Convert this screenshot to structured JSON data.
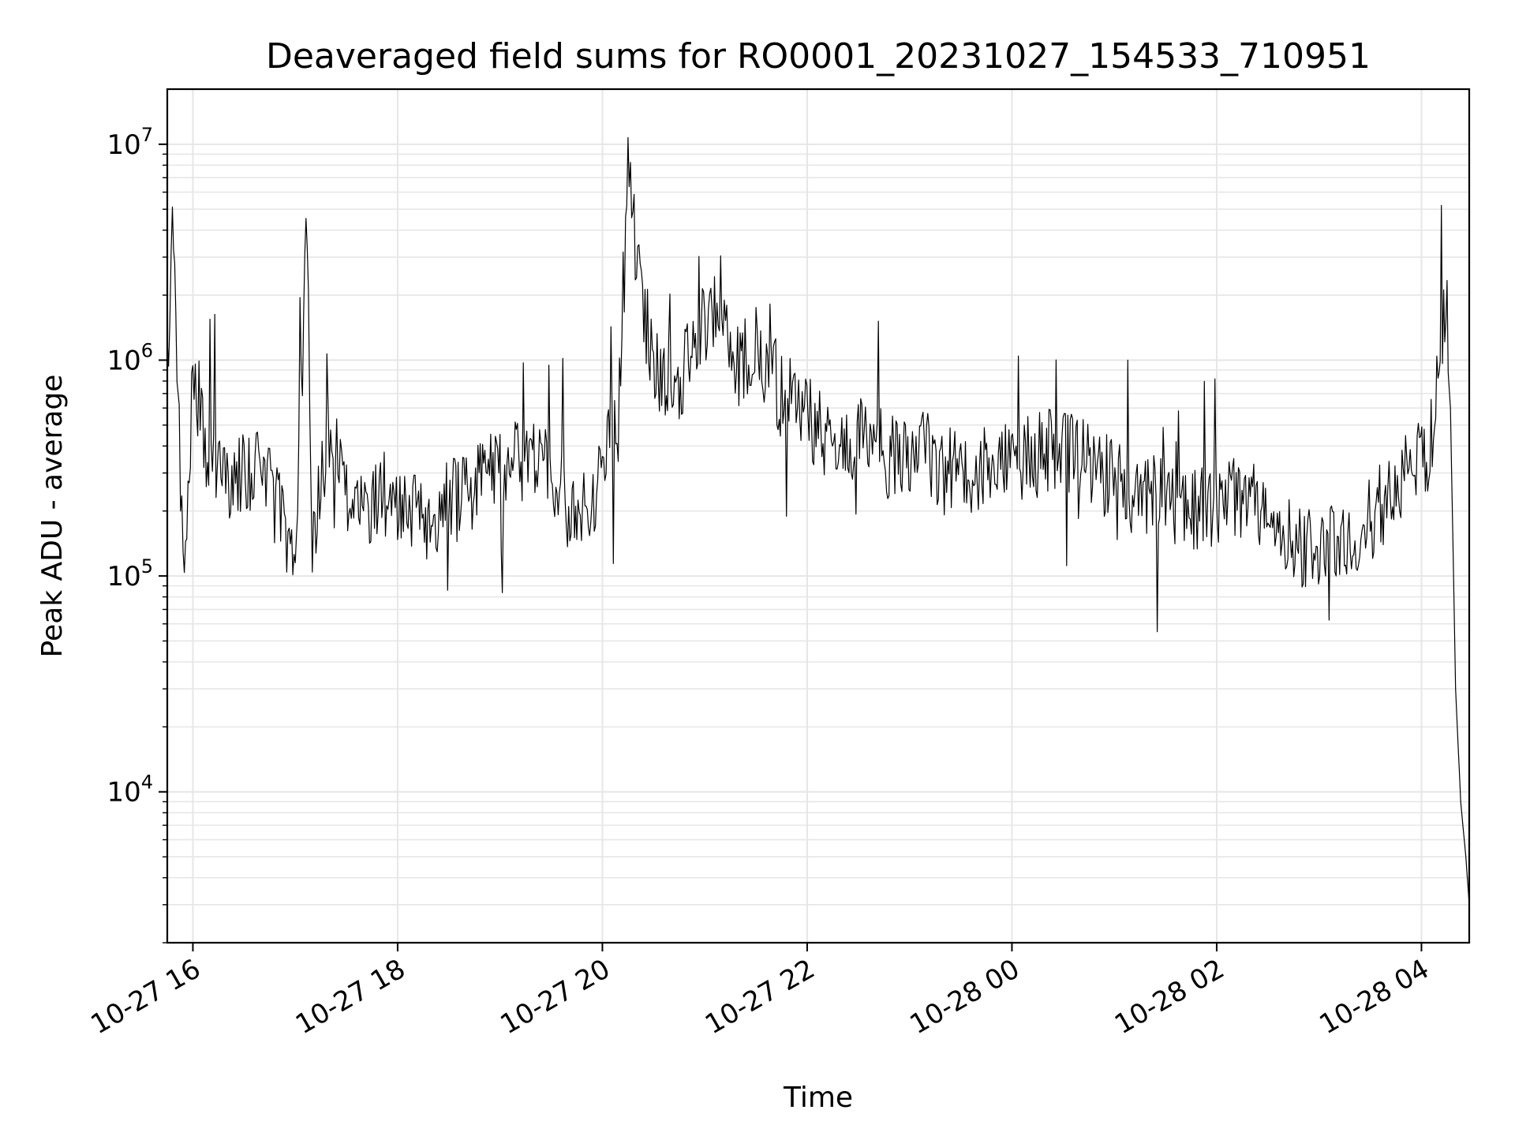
{
  "chart_data": {
    "type": "line",
    "title": "Deaveraged field sums for RO0001_20231027_154533_710951",
    "xlabel": "Time",
    "ylabel": "Peak ADU - average",
    "yscale": "log",
    "ylim": [
      2000,
      18000000
    ],
    "xlim": [
      "2023-10-27 15:45",
      "2023-10-28 04:28"
    ],
    "grid": true,
    "line_color": "#000000",
    "grid_color": "#e6e6e6",
    "x_ticks": [
      {
        "value": "2023-10-27 16:00",
        "label": "10-27 16"
      },
      {
        "value": "2023-10-27 18:00",
        "label": "10-27 18"
      },
      {
        "value": "2023-10-27 20:00",
        "label": "10-27 20"
      },
      {
        "value": "2023-10-27 22:00",
        "label": "10-27 22"
      },
      {
        "value": "2023-10-28 00:00",
        "label": "10-28 00"
      },
      {
        "value": "2023-10-28 02:00",
        "label": "10-28 02"
      },
      {
        "value": "2023-10-28 04:00",
        "label": "10-28 04"
      }
    ],
    "y_ticks": [
      {
        "value": 10000,
        "base": "10",
        "exp": "4"
      },
      {
        "value": 100000,
        "base": "10",
        "exp": "5"
      },
      {
        "value": 1000000,
        "base": "10",
        "exp": "6"
      },
      {
        "value": 10000000,
        "base": "10",
        "exp": "7"
      }
    ],
    "series": [
      {
        "points": [
          [
            "2023-10-27 15:45",
            800000
          ],
          [
            "2023-10-27 15:48",
            5000000
          ],
          [
            "2023-10-27 15:52",
            450000
          ],
          [
            "2023-10-27 15:55",
            95000
          ],
          [
            "2023-10-27 16:00",
            900000
          ],
          [
            "2023-10-27 16:10",
            330000
          ],
          [
            "2023-10-27 16:20",
            260000
          ],
          [
            "2023-10-27 16:30",
            300000
          ],
          [
            "2023-10-27 16:40",
            350000
          ],
          [
            "2023-10-27 16:50",
            200000
          ],
          [
            "2023-10-27 17:00",
            110000
          ],
          [
            "2023-10-27 17:07",
            4500000
          ],
          [
            "2023-10-27 17:10",
            150000
          ],
          [
            "2023-10-27 17:20",
            450000
          ],
          [
            "2023-10-27 17:30",
            250000
          ],
          [
            "2023-10-27 17:40",
            180000
          ],
          [
            "2023-10-27 17:50",
            260000
          ],
          [
            "2023-10-27 18:00",
            200000
          ],
          [
            "2023-10-27 18:15",
            180000
          ],
          [
            "2023-10-27 18:30",
            220000
          ],
          [
            "2023-10-27 18:45",
            250000
          ],
          [
            "2023-10-27 19:00",
            330000
          ],
          [
            "2023-10-27 19:15",
            400000
          ],
          [
            "2023-10-27 19:30",
            280000
          ],
          [
            "2023-10-27 19:45",
            180000
          ],
          [
            "2023-10-27 20:00",
            300000
          ],
          [
            "2023-10-27 20:10",
            700000
          ],
          [
            "2023-10-27 20:15",
            11000000
          ],
          [
            "2023-10-27 20:20",
            3000000
          ],
          [
            "2023-10-27 20:30",
            900000
          ],
          [
            "2023-10-27 20:45",
            800000
          ],
          [
            "2023-10-27 21:00",
            1500000
          ],
          [
            "2023-10-27 21:10",
            2000000
          ],
          [
            "2023-10-27 21:20",
            900000
          ],
          [
            "2023-10-27 21:30",
            1200000
          ],
          [
            "2023-10-27 21:45",
            700000
          ],
          [
            "2023-10-27 21:55",
            600000
          ],
          [
            "2023-10-27 22:10",
            450000
          ],
          [
            "2023-10-27 22:30",
            400000
          ],
          [
            "2023-10-27 22:50",
            350000
          ],
          [
            "2023-10-27 23:10",
            380000
          ],
          [
            "2023-10-27 23:30",
            300000
          ],
          [
            "2023-10-27 23:50",
            320000
          ],
          [
            "2023-10-28 00:10",
            350000
          ],
          [
            "2023-10-28 00:30",
            400000
          ],
          [
            "2023-10-28 00:50",
            300000
          ],
          [
            "2023-10-28 01:10",
            250000
          ],
          [
            "2023-10-28 01:30",
            220000
          ],
          [
            "2023-10-28 01:50",
            200000
          ],
          [
            "2023-10-28 02:10",
            230000
          ],
          [
            "2023-10-28 02:30",
            200000
          ],
          [
            "2023-10-28 02:50",
            130000
          ],
          [
            "2023-10-28 03:10",
            150000
          ],
          [
            "2023-10-28 03:30",
            180000
          ],
          [
            "2023-10-28 03:50",
            300000
          ],
          [
            "2023-10-28 04:05",
            400000
          ],
          [
            "2023-10-28 04:13",
            1700000
          ],
          [
            "2023-10-28 04:17",
            600000
          ],
          [
            "2023-10-28 04:20",
            30000
          ],
          [
            "2023-10-28 04:23",
            9000
          ],
          [
            "2023-10-28 04:26",
            5000
          ],
          [
            "2023-10-28 04:28",
            3000
          ]
        ]
      }
    ]
  }
}
